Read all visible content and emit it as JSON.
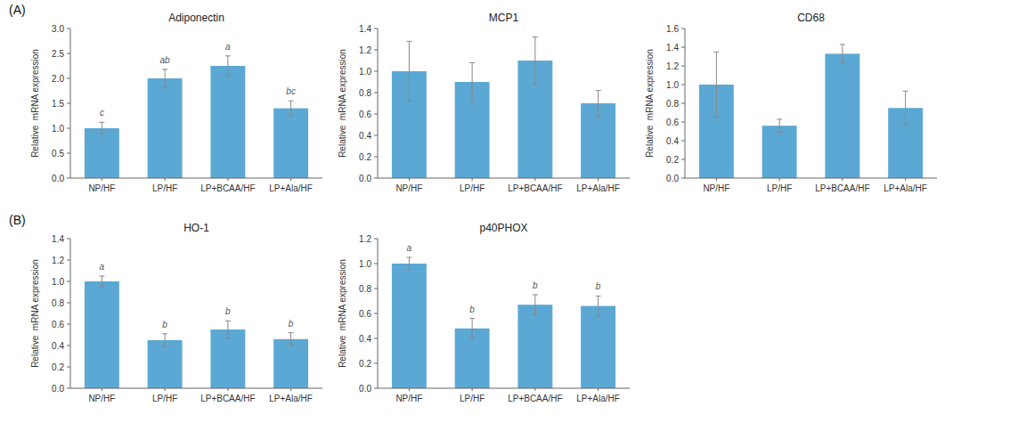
{
  "chart_data": [
    {
      "type": "bar",
      "title": "Adiponectin",
      "ylabel": "Relative  mRNA expression",
      "categories": [
        "NP/HF",
        "LP/HF",
        "LP+BCAA/HF",
        "LP+Ala/HF"
      ],
      "values": [
        1.0,
        2.0,
        2.25,
        1.4
      ],
      "errors": [
        0.12,
        0.18,
        0.2,
        0.15
      ],
      "color": "#5ba8d4",
      "ylim": [
        0,
        3.0
      ],
      "yticks": [
        {
          "value": 0,
          "label": "0.0"
        },
        0.5,
        {
          "value": 1,
          "label": "1.0"
        },
        1.5,
        {
          "value": 2,
          "label": "2.0"
        },
        2.5,
        {
          "value": 3,
          "label": "3.0"
        }
      ],
      "grid": false,
      "annotations": [
        {
          "text": "(A)"
        },
        {
          "text": "c",
          "category": "NP/HF"
        },
        {
          "text": "ab",
          "category": "LP/HF"
        },
        {
          "text": "a",
          "category": "LP+BCAA/HF"
        },
        {
          "text": "bc",
          "category": "LP+Ala/HF"
        }
      ]
    },
    {
      "type": "bar",
      "title": "MCP1",
      "ylabel": "Relative  mRNA expression",
      "categories": [
        "NP/HF",
        "LP/HF",
        "LP+BCAA/HF",
        "LP+Ala/HF"
      ],
      "values": [
        1.0,
        0.9,
        1.1,
        0.7
      ],
      "errors": [
        0.28,
        0.18,
        0.22,
        0.12
      ],
      "color": "#5ba8d4",
      "ylim": [
        0,
        1.4
      ],
      "yticks": [
        {
          "value": 0,
          "label": "0.0"
        },
        0.2,
        0.4,
        0.6,
        0.8,
        {
          "value": 1,
          "label": "1.0"
        },
        1.2,
        1.4
      ],
      "grid": false
    },
    {
      "type": "bar",
      "title": "CD68",
      "ylabel": "Relative  mRNA expression",
      "categories": [
        "NP/HF",
        "LP/HF",
        "LP+BCAA/HF",
        "LP+Ala/HF"
      ],
      "values": [
        1.0,
        0.56,
        1.33,
        0.75
      ],
      "errors": [
        0.35,
        0.07,
        0.1,
        0.18
      ],
      "color": "#5ba8d4",
      "ylim": [
        0,
        1.6
      ],
      "yticks": [
        {
          "value": 0,
          "label": "0.0"
        },
        0.2,
        0.4,
        0.6,
        0.8,
        {
          "value": 1,
          "label": "1.0"
        },
        1.2,
        1.4,
        1.6
      ],
      "grid": false
    },
    {
      "type": "bar",
      "title": "HO-1",
      "ylabel": "Relative  mRNA expression",
      "categories": [
        "NP/HF",
        "LP/HF",
        "LP+BCAA/HF",
        "LP+Ala/HF"
      ],
      "values": [
        1.0,
        0.45,
        0.55,
        0.46
      ],
      "errors": [
        0.05,
        0.06,
        0.08,
        0.06
      ],
      "color": "#5ba8d4",
      "ylim": [
        0,
        1.4
      ],
      "yticks": [
        {
          "value": 0,
          "label": "0.0"
        },
        0.2,
        0.4,
        0.6,
        0.8,
        {
          "value": 1,
          "label": "1.0"
        },
        1.2,
        1.4
      ],
      "grid": false,
      "annotations": [
        {
          "text": "(B)"
        },
        {
          "text": "a",
          "category": "NP/HF"
        },
        {
          "text": "b",
          "category": "LP/HF"
        },
        {
          "text": "b",
          "category": "LP+BCAA/HF"
        },
        {
          "text": "b",
          "category": "LP+Ala/HF"
        }
      ]
    },
    {
      "type": "bar",
      "title": "p40PHOX",
      "ylabel": "Relative  mRNA expression",
      "categories": [
        "NP/HF",
        "LP/HF",
        "LP+BCAA/HF",
        "LP+Ala/HF"
      ],
      "values": [
        1.0,
        0.48,
        0.67,
        0.66
      ],
      "errors": [
        0.05,
        0.08,
        0.08,
        0.08
      ],
      "color": "#5ba8d4",
      "ylim": [
        0,
        1.2
      ],
      "yticks": [
        {
          "value": 0,
          "label": "0.0"
        },
        0.2,
        0.4,
        0.6,
        0.8,
        {
          "value": 1,
          "label": "1.0"
        },
        1.2
      ],
      "grid": false,
      "annotations": [
        {
          "text": "a",
          "category": "NP/HF"
        },
        {
          "text": "b",
          "category": "LP/HF"
        },
        {
          "text": "b",
          "category": "LP+BCAA/HF"
        },
        {
          "text": "b",
          "category": "LP+Ala/HF"
        }
      ]
    }
  ]
}
